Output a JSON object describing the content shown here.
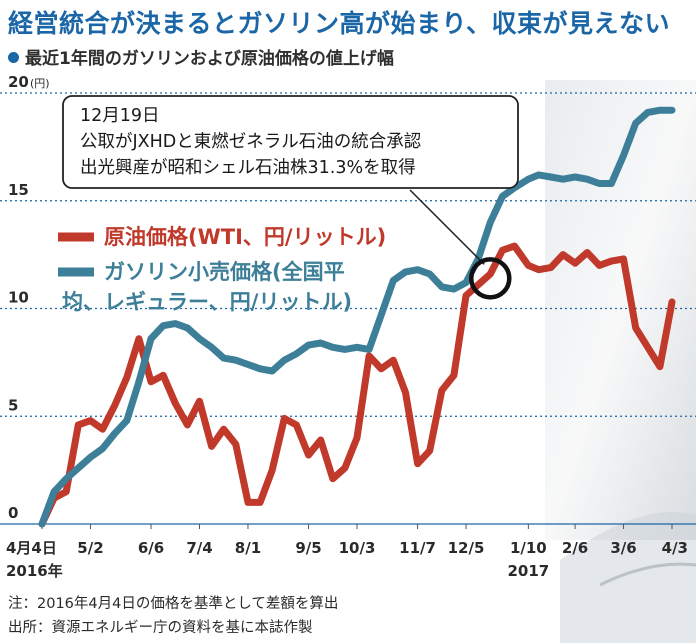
{
  "header": {
    "title": "経営統合が決まるとガソリン高が始まり、収束が見えない",
    "subtitle": "最近1年間のガソリンおよび原油価格の値上げ幅"
  },
  "colors": {
    "title": "#1b66a6",
    "oil": "#c0392b",
    "gasoline": "#3d7f99",
    "grid": "#1b66a6"
  },
  "annotation": {
    "lines": [
      "12月19日",
      "公取がJXHDと東燃ゼネラル石油の統合承認",
      "出光興産が昭和シェル石油株31.3%を取得"
    ],
    "x": "2016-12-19"
  },
  "notes": {
    "note": "注：2016年4月4日の価格を基準として差額を算出",
    "source": "出所：資源エネルギー庁の資料を基に本誌作製"
  },
  "chart_data": {
    "type": "line",
    "y_unit": "(円)",
    "ylim": [
      0,
      20
    ],
    "yticks": [
      0,
      5,
      10,
      15,
      20
    ],
    "grid": true,
    "legend_position": "left, inside plot",
    "x_ticks": [
      {
        "label": "4月4日",
        "date": "2016-04-04",
        "sub": "2016年"
      },
      {
        "label": "5/2",
        "date": "2016-05-02"
      },
      {
        "label": "6/6",
        "date": "2016-06-06"
      },
      {
        "label": "7/4",
        "date": "2016-07-04"
      },
      {
        "label": "8/1",
        "date": "2016-08-01"
      },
      {
        "label": "9/5",
        "date": "2016-09-05"
      },
      {
        "label": "10/3",
        "date": "2016-10-03"
      },
      {
        "label": "11/7",
        "date": "2016-11-07"
      },
      {
        "label": "12/5",
        "date": "2016-12-05"
      },
      {
        "label": "1/10",
        "date": "2017-01-10",
        "sub": "2017"
      },
      {
        "label": "2/6",
        "date": "2017-02-06"
      },
      {
        "label": "3/6",
        "date": "2017-03-06"
      },
      {
        "label": "4/3",
        "date": "2017-04-03"
      }
    ],
    "series": [
      {
        "name": "原油価格(WTI、円/リットル)",
        "color": "#c0392b",
        "points": [
          [
            "2016-04-04",
            0.0
          ],
          [
            "2016-04-11",
            1.2
          ],
          [
            "2016-04-18",
            1.5
          ],
          [
            "2016-04-25",
            4.6
          ],
          [
            "2016-05-02",
            4.8
          ],
          [
            "2016-05-09",
            4.4
          ],
          [
            "2016-05-16",
            5.5
          ],
          [
            "2016-05-23",
            6.8
          ],
          [
            "2016-05-30",
            8.6
          ],
          [
            "2016-06-06",
            6.6
          ],
          [
            "2016-06-13",
            6.9
          ],
          [
            "2016-06-20",
            5.6
          ],
          [
            "2016-06-27",
            4.6
          ],
          [
            "2016-07-04",
            5.7
          ],
          [
            "2016-07-11",
            3.6
          ],
          [
            "2016-07-18",
            4.4
          ],
          [
            "2016-07-25",
            3.7
          ],
          [
            "2016-08-01",
            1.0
          ],
          [
            "2016-08-08",
            1.0
          ],
          [
            "2016-08-15",
            2.5
          ],
          [
            "2016-08-22",
            4.9
          ],
          [
            "2016-08-29",
            4.6
          ],
          [
            "2016-09-05",
            3.2
          ],
          [
            "2016-09-12",
            3.9
          ],
          [
            "2016-09-19",
            2.1
          ],
          [
            "2016-09-26",
            2.6
          ],
          [
            "2016-10-03",
            4.0
          ],
          [
            "2016-10-10",
            7.8
          ],
          [
            "2016-10-17",
            7.2
          ],
          [
            "2016-10-24",
            7.6
          ],
          [
            "2016-10-31",
            6.1
          ],
          [
            "2016-11-07",
            2.8
          ],
          [
            "2016-11-14",
            3.4
          ],
          [
            "2016-11-21",
            6.2
          ],
          [
            "2016-11-28",
            6.9
          ],
          [
            "2016-12-05",
            10.6
          ],
          [
            "2016-12-12",
            11.1
          ],
          [
            "2016-12-19",
            11.6
          ],
          [
            "2016-12-26",
            12.7
          ],
          [
            "2017-01-02",
            12.9
          ],
          [
            "2017-01-10",
            12.0
          ],
          [
            "2017-01-16",
            11.8
          ],
          [
            "2017-01-23",
            11.9
          ],
          [
            "2017-01-30",
            12.5
          ],
          [
            "2017-02-06",
            12.1
          ],
          [
            "2017-02-13",
            12.6
          ],
          [
            "2017-02-20",
            12.0
          ],
          [
            "2017-02-27",
            12.2
          ],
          [
            "2017-03-06",
            12.3
          ],
          [
            "2017-03-13",
            9.1
          ],
          [
            "2017-03-20",
            8.2
          ],
          [
            "2017-03-27",
            7.3
          ],
          [
            "2017-04-03",
            10.3
          ]
        ]
      },
      {
        "name": "ガソリン小売価格(全国平均、レギュラー、円/リットル)",
        "color": "#3d7f99",
        "points": [
          [
            "2016-04-04",
            0.0
          ],
          [
            "2016-04-11",
            1.5
          ],
          [
            "2016-04-18",
            2.1
          ],
          [
            "2016-04-25",
            2.6
          ],
          [
            "2016-05-02",
            3.1
          ],
          [
            "2016-05-09",
            3.5
          ],
          [
            "2016-05-16",
            4.2
          ],
          [
            "2016-05-23",
            4.8
          ],
          [
            "2016-05-30",
            6.6
          ],
          [
            "2016-06-06",
            8.6
          ],
          [
            "2016-06-13",
            9.2
          ],
          [
            "2016-06-20",
            9.3
          ],
          [
            "2016-06-27",
            9.1
          ],
          [
            "2016-07-04",
            8.6
          ],
          [
            "2016-07-11",
            8.2
          ],
          [
            "2016-07-18",
            7.7
          ],
          [
            "2016-07-25",
            7.6
          ],
          [
            "2016-08-01",
            7.4
          ],
          [
            "2016-08-08",
            7.2
          ],
          [
            "2016-08-15",
            7.1
          ],
          [
            "2016-08-22",
            7.6
          ],
          [
            "2016-08-29",
            7.9
          ],
          [
            "2016-09-05",
            8.3
          ],
          [
            "2016-09-12",
            8.4
          ],
          [
            "2016-09-19",
            8.2
          ],
          [
            "2016-09-26",
            8.1
          ],
          [
            "2016-10-03",
            8.2
          ],
          [
            "2016-10-10",
            8.1
          ],
          [
            "2016-10-17",
            9.7
          ],
          [
            "2016-10-24",
            11.3
          ],
          [
            "2016-10-31",
            11.7
          ],
          [
            "2016-11-07",
            11.8
          ],
          [
            "2016-11-14",
            11.6
          ],
          [
            "2016-11-21",
            11.0
          ],
          [
            "2016-11-28",
            10.9
          ],
          [
            "2016-12-05",
            11.2
          ],
          [
            "2016-12-12",
            12.3
          ],
          [
            "2016-12-19",
            14.0
          ],
          [
            "2016-12-26",
            15.2
          ],
          [
            "2017-01-02",
            15.6
          ],
          [
            "2017-01-10",
            16.0
          ],
          [
            "2017-01-16",
            16.2
          ],
          [
            "2017-01-23",
            16.1
          ],
          [
            "2017-01-30",
            16.0
          ],
          [
            "2017-02-06",
            16.1
          ],
          [
            "2017-02-13",
            16.0
          ],
          [
            "2017-02-20",
            15.8
          ],
          [
            "2017-02-27",
            15.8
          ],
          [
            "2017-03-06",
            17.1
          ],
          [
            "2017-03-13",
            18.6
          ],
          [
            "2017-03-20",
            19.1
          ],
          [
            "2017-03-27",
            19.2
          ],
          [
            "2017-04-03",
            19.2
          ]
        ]
      }
    ]
  }
}
